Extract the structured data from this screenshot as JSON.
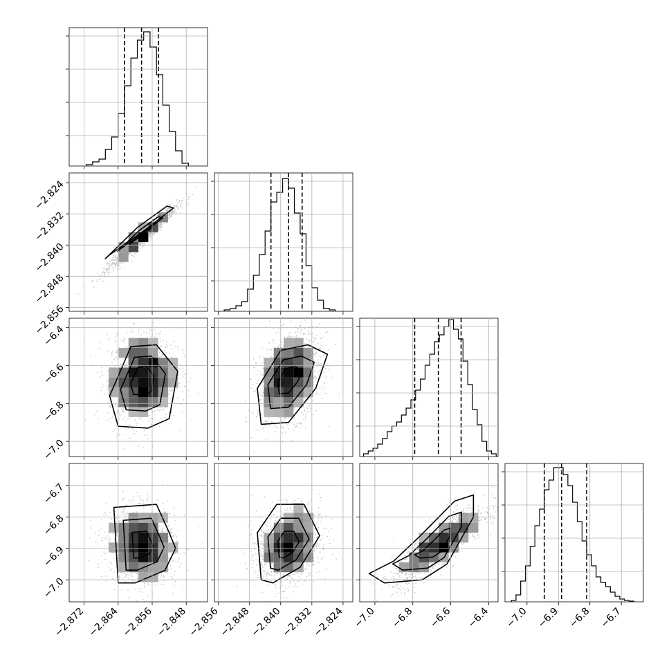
{
  "chart_data": {
    "type": "corner",
    "title": "",
    "grid": true,
    "colors": {
      "line": "#000000",
      "grid": "#b0b0b0",
      "points": "#555555",
      "background": "#ffffff"
    },
    "parameters": [
      {
        "axis_range": [
          -2.8755,
          -2.843
        ],
        "ticks": [
          "−2.872",
          "−2.864",
          "−2.856",
          "−2.848"
        ],
        "tick_values": [
          -2.872,
          -2.864,
          -2.856,
          -2.848
        ],
        "quantiles": [
          -2.8625,
          -2.8585,
          -2.8545
        ],
        "median": -2.8585,
        "sigma": 0.004,
        "histogram": {
          "bin_edges": [
            -2.8715,
            -2.87,
            -2.8685,
            -2.867,
            -2.8655,
            -2.864,
            -2.8625,
            -2.861,
            -2.8595,
            -2.858,
            -2.8565,
            -2.855,
            -2.8535,
            -2.852,
            -2.8505,
            -2.849,
            -2.8475
          ],
          "counts": [
            0.01,
            0.03,
            0.05,
            0.12,
            0.21,
            0.38,
            0.58,
            0.78,
            0.91,
            0.97,
            0.86,
            0.66,
            0.44,
            0.25,
            0.11,
            0.02
          ]
        }
      },
      {
        "axis_range": [
          -2.857,
          -2.8215
        ],
        "ticks": [
          "−2.856",
          "−2.848",
          "−2.840",
          "−2.832",
          "−2.824"
        ],
        "tick_values": [
          -2.856,
          -2.848,
          -2.84,
          -2.832,
          -2.824
        ],
        "quantiles": [
          -2.8425,
          -2.838,
          -2.8345
        ],
        "median": -2.838,
        "sigma": 0.004,
        "histogram": {
          "bin_edges": [
            -2.8545,
            -2.853,
            -2.8515,
            -2.85,
            -2.8485,
            -2.847,
            -2.8455,
            -2.844,
            -2.8425,
            -2.841,
            -2.8395,
            -2.838,
            -2.8365,
            -2.835,
            -2.8335,
            -2.832,
            -2.8305,
            -2.829,
            -2.8275,
            -2.826
          ],
          "counts": [
            0.01,
            0.02,
            0.04,
            0.07,
            0.16,
            0.26,
            0.41,
            0.58,
            0.79,
            0.86,
            0.96,
            0.89,
            0.71,
            0.56,
            0.33,
            0.17,
            0.08,
            0.02,
            0.01
          ]
        }
      },
      {
        "axis_range": [
          -7.08,
          -6.35
        ],
        "ticks": [
          "−7.0",
          "−6.8",
          "−6.6",
          "−6.4"
        ],
        "tick_values": [
          -7.0,
          -6.8,
          -6.6,
          -6.4
        ],
        "quantiles": [
          -6.79,
          -6.665,
          -6.545
        ],
        "median": -6.665,
        "sigma": 0.12,
        "histogram": {
          "bin_edges": [
            -7.06,
            -7.035,
            -7.01,
            -6.985,
            -6.96,
            -6.935,
            -6.91,
            -6.885,
            -6.86,
            -6.835,
            -6.81,
            -6.785,
            -6.76,
            -6.735,
            -6.71,
            -6.685,
            -6.66,
            -6.635,
            -6.61,
            -6.585,
            -6.56,
            -6.535,
            -6.51,
            -6.485,
            -6.46,
            -6.435,
            -6.41,
            -6.385,
            -6.36
          ],
          "counts": [
            0.02,
            0.04,
            0.06,
            0.09,
            0.13,
            0.18,
            0.22,
            0.25,
            0.3,
            0.35,
            0.41,
            0.48,
            0.56,
            0.66,
            0.74,
            0.83,
            0.88,
            0.94,
            0.99,
            0.92,
            0.85,
            0.69,
            0.52,
            0.34,
            0.23,
            0.11,
            0.04,
            0.02
          ]
        }
      },
      {
        "axis_range": [
          -7.07,
          -6.63
        ],
        "ticks": [
          "−7.0",
          "−6.9",
          "−6.8",
          "−6.7"
        ],
        "tick_values": [
          -7.0,
          -6.9,
          -6.8,
          -6.7
        ],
        "quantiles": [
          -6.945,
          -6.89,
          -6.81
        ],
        "median": -6.89,
        "sigma": 0.06,
        "histogram": {
          "bin_edges": [
            -7.05,
            -7.035,
            -7.02,
            -7.005,
            -6.99,
            -6.975,
            -6.96,
            -6.945,
            -6.93,
            -6.915,
            -6.9,
            -6.885,
            -6.87,
            -6.855,
            -6.84,
            -6.825,
            -6.81,
            -6.795,
            -6.78,
            -6.765,
            -6.75,
            -6.735,
            -6.72,
            -6.705,
            -6.69,
            -6.675,
            -6.66
          ],
          "counts": [
            0.01,
            0.05,
            0.15,
            0.26,
            0.4,
            0.55,
            0.67,
            0.81,
            0.88,
            0.97,
            0.97,
            0.92,
            0.84,
            0.72,
            0.58,
            0.44,
            0.34,
            0.26,
            0.18,
            0.14,
            0.11,
            0.07,
            0.04,
            0.02,
            0.01,
            0.005
          ]
        }
      }
    ],
    "pairs": [
      {
        "row": 1,
        "col": 0,
        "rho": 0.97,
        "contour_hull": [
          [
            -2.866,
            -2.8425
          ],
          [
            -2.8585,
            -2.8368
          ],
          [
            -2.851,
            -2.8305
          ],
          [
            -2.8525,
            -2.83
          ],
          [
            -2.8595,
            -2.8355
          ],
          [
            -2.867,
            -2.8435
          ]
        ]
      },
      {
        "row": 2,
        "col": 0,
        "rho": 0.1,
        "contour_hull": [
          [
            -2.864,
            -6.92
          ],
          [
            -2.866,
            -6.76
          ],
          [
            -2.861,
            -6.5
          ],
          [
            -2.855,
            -6.49
          ],
          [
            -2.85,
            -6.63
          ],
          [
            -2.852,
            -6.88
          ],
          [
            -2.857,
            -6.93
          ]
        ]
      },
      {
        "row": 2,
        "col": 1,
        "rho": 0.3,
        "contour_hull": [
          [
            -2.845,
            -6.91
          ],
          [
            -2.846,
            -6.72
          ],
          [
            -2.84,
            -6.52
          ],
          [
            -2.833,
            -6.49
          ],
          [
            -2.828,
            -6.54
          ],
          [
            -2.831,
            -6.72
          ],
          [
            -2.838,
            -6.9
          ]
        ]
      },
      {
        "row": 3,
        "col": 0,
        "rho": -0.05,
        "contour_hull": [
          [
            -2.864,
            -7.01
          ],
          [
            -2.865,
            -6.77
          ],
          [
            -2.855,
            -6.76
          ],
          [
            -2.852,
            -6.85
          ],
          [
            -2.8505,
            -6.9
          ],
          [
            -2.853,
            -6.97
          ],
          [
            -2.86,
            -7.01
          ]
        ]
      },
      {
        "row": 3,
        "col": 1,
        "rho": 0.2,
        "contour_hull": [
          [
            -2.845,
            -7.0
          ],
          [
            -2.846,
            -6.85
          ],
          [
            -2.841,
            -6.76
          ],
          [
            -2.834,
            -6.76
          ],
          [
            -2.83,
            -6.86
          ],
          [
            -2.835,
            -6.96
          ],
          [
            -2.842,
            -7.01
          ]
        ]
      },
      {
        "row": 3,
        "col": 2,
        "rho": 0.85,
        "contour_hull": [
          [
            -7.03,
            -6.98
          ],
          [
            -6.9,
            -6.94
          ],
          [
            -6.76,
            -6.86
          ],
          [
            -6.58,
            -6.75
          ],
          [
            -6.48,
            -6.73
          ],
          [
            -6.48,
            -6.8
          ],
          [
            -6.62,
            -6.95
          ],
          [
            -6.75,
            -7.0
          ],
          [
            -6.95,
            -7.01
          ]
        ]
      }
    ]
  }
}
